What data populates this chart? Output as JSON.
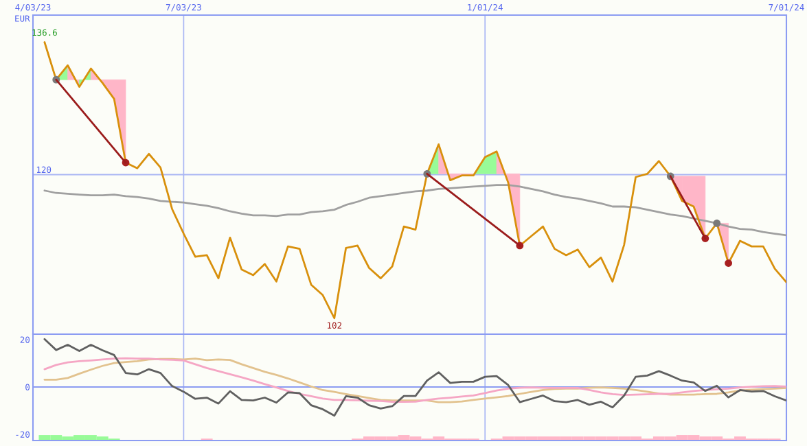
{
  "chart_data": [
    {
      "type": "line",
      "ylabel": "EUR",
      "grid": "x",
      "x": [
        "2023-04-10",
        "2023-04-17",
        "2023-04-24",
        "2023-05-01",
        "2023-05-08",
        "2023-05-15",
        "2023-05-22",
        "2023-05-29",
        "2023-06-05",
        "2023-06-12",
        "2023-06-19",
        "2023-06-26",
        "2023-07-03",
        "2023-07-10",
        "2023-07-17",
        "2023-07-24",
        "2023-07-31",
        "2023-08-07",
        "2023-08-14",
        "2023-08-21",
        "2023-08-28",
        "2023-09-04",
        "2023-09-11",
        "2023-09-18",
        "2023-09-25",
        "2023-10-02",
        "2023-10-09",
        "2023-10-16",
        "2023-10-23",
        "2023-10-30",
        "2023-11-06",
        "2023-11-13",
        "2023-11-20",
        "2023-11-27",
        "2023-12-04",
        "2023-12-11",
        "2023-12-18",
        "2023-12-25",
        "2024-01-01",
        "2024-01-08",
        "2024-01-15",
        "2024-01-22",
        "2024-01-29",
        "2024-02-05",
        "2024-02-12",
        "2024-02-19",
        "2024-02-26",
        "2024-03-04",
        "2024-03-11",
        "2024-03-18",
        "2024-03-25",
        "2024-04-01",
        "2024-04-08",
        "2024-04-15",
        "2024-04-22",
        "2024-04-29",
        "2024-05-06",
        "2024-05-13",
        "2024-05-20",
        "2024-05-27",
        "2024-06-03",
        "2024-06-10",
        "2024-06-17",
        "2024-06-24",
        "2024-07-01"
      ],
      "xlim": [
        "2023-04-03",
        "2024-07-01"
      ],
      "xticks": [
        {
          "value": "2023-04-03",
          "label": "4/03/23"
        },
        {
          "value": "2023-07-03",
          "label": "7/03/23"
        },
        {
          "value": "2024-01-01",
          "label": "1/01/24"
        },
        {
          "value": "2024-07-01",
          "label": "7/01/24"
        }
      ],
      "ylim": [
        100,
        140
      ],
      "ref_lines": [
        {
          "axis": "y",
          "value": 120,
          "label": "120",
          "color": "#a9b6f4"
        }
      ],
      "series": [
        {
          "type": "area",
          "color": "#98fb98",
          "x": [
            "2023-04-17",
            "2023-04-24",
            "2023-04-24"
          ],
          "values": [
            131.9,
            133.7,
            131.9
          ]
        },
        {
          "type": "area",
          "color": "#ffb6c8",
          "x": [
            "2023-04-24",
            "2023-05-01",
            "2023-05-01",
            "2023-04-24"
          ],
          "values": [
            133.7,
            131.0,
            131.9,
            131.9
          ]
        },
        {
          "type": "area",
          "color": "#98fb98",
          "x": [
            "2023-05-01",
            "2023-05-08",
            "2023-05-08",
            "2023-05-01"
          ],
          "values": [
            131.0,
            133.3,
            131.9,
            131.9
          ]
        },
        {
          "type": "area",
          "color": "#ffb6c8",
          "x": [
            "2023-05-08",
            "2023-05-15",
            "2023-05-22",
            "2023-05-29",
            "2023-05-29",
            "2023-05-08"
          ],
          "values": [
            133.3,
            131.5,
            129.5,
            121.5,
            131.9,
            131.9
          ]
        },
        {
          "type": "area",
          "color": "#98fb98",
          "x": [
            "2023-11-27",
            "2023-12-04",
            "2023-12-04"
          ],
          "values": [
            120.1,
            123.8,
            120.1
          ]
        },
        {
          "type": "area",
          "color": "#ffb6c8",
          "x": [
            "2023-12-04",
            "2023-12-11",
            "2023-12-18",
            "2023-12-25",
            "2023-12-25",
            "2023-12-04"
          ],
          "values": [
            123.8,
            119.3,
            119.9,
            119.9,
            120.1,
            120.1
          ]
        },
        {
          "type": "area",
          "color": "#98fb98",
          "x": [
            "2023-12-25",
            "2024-01-01",
            "2024-01-08",
            "2024-01-08",
            "2023-12-25"
          ],
          "values": [
            119.9,
            122.2,
            122.9,
            120.1,
            120.1
          ]
        },
        {
          "type": "area",
          "color": "#ffb6c8",
          "x": [
            "2024-01-08",
            "2024-01-15",
            "2024-01-22",
            "2024-01-22",
            "2024-01-08"
          ],
          "values": [
            122.9,
            119.0,
            111.1,
            120.1,
            120.1
          ]
        },
        {
          "type": "area",
          "color": "#ffb6c8",
          "x": [
            "2024-04-22",
            "2024-04-29",
            "2024-04-29"
          ],
          "values": [
            119.8,
            116.7,
            119.8
          ]
        },
        {
          "type": "area",
          "color": "#ffb6c8",
          "x": [
            "2024-04-29",
            "2024-05-06",
            "2024-05-13",
            "2024-05-13",
            "2024-04-29"
          ],
          "values": [
            116.7,
            116.0,
            112.0,
            119.8,
            119.8
          ]
        },
        {
          "type": "area",
          "color": "#ffb6c8",
          "x": [
            "2024-05-20",
            "2024-05-27",
            "2024-05-27"
          ],
          "values": [
            113.9,
            108.9,
            113.9
          ]
        },
        {
          "color": "#a0a0a0",
          "values": [
            118.0,
            117.7,
            117.6,
            117.5,
            117.4,
            117.4,
            117.5,
            117.3,
            117.2,
            117.0,
            116.7,
            116.6,
            116.5,
            116.3,
            116.1,
            115.8,
            115.4,
            115.1,
            114.9,
            114.9,
            114.8,
            115.0,
            115.0,
            115.3,
            115.4,
            115.6,
            116.2,
            116.6,
            117.1,
            117.3,
            117.5,
            117.7,
            117.9,
            118.0,
            118.2,
            118.3,
            118.4,
            118.5,
            118.6,
            118.7,
            118.7,
            118.5,
            118.2,
            117.9,
            117.5,
            117.2,
            117.0,
            116.7,
            116.4,
            116.0,
            116.0,
            115.9,
            115.6,
            115.3,
            115.0,
            114.8,
            114.5,
            114.2,
            113.9,
            113.5,
            113.2,
            113.1,
            112.8,
            112.6,
            112.4
          ]
        },
        {
          "color": "#d8900c",
          "values": [
            136.6,
            131.9,
            133.7,
            131.0,
            133.3,
            131.5,
            129.5,
            121.5,
            120.8,
            122.6,
            120.9,
            115.7,
            112.6,
            109.7,
            109.9,
            107.0,
            112.1,
            108.1,
            107.4,
            108.8,
            106.6,
            111.0,
            110.7,
            106.2,
            104.9,
            102.0,
            110.8,
            111.1,
            108.3,
            107.0,
            108.5,
            113.5,
            113.1,
            120.1,
            123.8,
            119.3,
            119.9,
            119.9,
            122.2,
            122.9,
            119.0,
            111.1,
            112.3,
            113.5,
            110.7,
            109.9,
            110.6,
            108.4,
            109.6,
            106.6,
            111.2,
            119.7,
            120.1,
            121.7,
            119.8,
            116.7,
            116.0,
            112.0,
            113.9,
            108.9,
            111.7,
            111.0,
            111.0,
            108.2,
            106.5
          ],
          "value_labels": [
            "136.6",
            null,
            null,
            null,
            null,
            null,
            null,
            null,
            null,
            null,
            null,
            null,
            null,
            null,
            null,
            null,
            null,
            null,
            null,
            null,
            null,
            null,
            null,
            null,
            null,
            "102",
            null,
            null,
            null,
            null,
            null,
            null,
            null,
            null,
            null,
            null,
            null,
            null,
            null,
            null,
            null,
            null,
            null,
            null,
            null,
            null,
            null,
            null,
            null,
            null,
            null,
            null,
            null,
            null,
            null,
            null,
            null,
            null,
            null,
            null,
            null,
            null,
            null,
            null,
            null
          ]
        },
        {
          "type": "scatter",
          "marker": "circle",
          "color": "#7a7a7a",
          "x": [
            "2023-04-17",
            "2023-11-27",
            "2024-04-22",
            "2024-05-20"
          ],
          "values": [
            131.9,
            120.1,
            119.8,
            113.9
          ]
        },
        {
          "type": "scatter",
          "marker": "circle",
          "color": "#a82020",
          "x": [
            "2023-05-29",
            "2024-01-22",
            "2024-05-13",
            "2024-05-27"
          ],
          "values": [
            121.5,
            111.1,
            112.0,
            108.9
          ]
        },
        {
          "color": "#9b1c1c",
          "x": [
            "2023-04-17",
            "2023-05-29"
          ],
          "values": [
            131.9,
            121.5
          ]
        },
        {
          "color": "#9b1c1c",
          "x": [
            "2023-11-27",
            "2024-01-22"
          ],
          "values": [
            120.1,
            111.1
          ]
        },
        {
          "color": "#9b1c1c",
          "x": [
            "2024-04-22",
            "2024-05-13"
          ],
          "values": [
            119.8,
            112.0
          ]
        }
      ]
    },
    {
      "type": "line",
      "grid": "x",
      "tick_labels": "y",
      "x": [
        "2023-04-10",
        "2023-04-17",
        "2023-04-24",
        "2023-05-01",
        "2023-05-08",
        "2023-05-15",
        "2023-05-22",
        "2023-05-29",
        "2023-06-05",
        "2023-06-12",
        "2023-06-19",
        "2023-06-26",
        "2023-07-03",
        "2023-07-10",
        "2023-07-17",
        "2023-07-24",
        "2023-07-31",
        "2023-08-07",
        "2023-08-14",
        "2023-08-21",
        "2023-08-28",
        "2023-09-04",
        "2023-09-11",
        "2023-09-18",
        "2023-09-25",
        "2023-10-02",
        "2023-10-09",
        "2023-10-16",
        "2023-10-23",
        "2023-10-30",
        "2023-11-06",
        "2023-11-13",
        "2023-11-20",
        "2023-11-27",
        "2023-12-04",
        "2023-12-11",
        "2023-12-18",
        "2023-12-25",
        "2024-01-01",
        "2024-01-08",
        "2024-01-15",
        "2024-01-22",
        "2024-01-29",
        "2024-02-05",
        "2024-02-12",
        "2024-02-19",
        "2024-02-26",
        "2024-03-04",
        "2024-03-11",
        "2024-03-18",
        "2024-03-25",
        "2024-04-01",
        "2024-04-08",
        "2024-04-15",
        "2024-04-22",
        "2024-04-29",
        "2024-05-06",
        "2024-05-13",
        "2024-05-20",
        "2024-05-27",
        "2024-06-03",
        "2024-06-10",
        "2024-06-17",
        "2024-06-24",
        "2024-07-01"
      ],
      "xlim": [
        "2023-04-03",
        "2024-07-01"
      ],
      "xticks": [
        {
          "value": "2023-04-03",
          "label": null
        },
        {
          "value": "2023-07-03",
          "label": null
        },
        {
          "value": "2024-01-01",
          "label": null
        },
        {
          "value": "2024-07-01",
          "label": null
        }
      ],
      "ylim": [
        -22.6,
        22.3
      ],
      "yticks": [
        20,
        0,
        -20
      ],
      "ref_lines": [
        {
          "axis": "y",
          "value": 0,
          "color": "#8c9cf2"
        }
      ],
      "series": [
        {
          "type": "bar",
          "values": [
            2.3,
            2.3,
            1.7,
            2.3,
            2.3,
            1.7,
            0.8,
            null,
            null,
            null,
            null,
            null,
            null,
            null,
            0.8,
            null,
            null,
            null,
            null,
            null,
            null,
            null,
            null,
            null,
            null,
            null,
            null,
            0.8,
            1.7,
            1.7,
            1.7,
            2.3,
            1.7,
            0.8,
            1.7,
            0.8,
            0.8,
            0.8,
            null,
            0.8,
            1.7,
            1.7,
            1.7,
            1.7,
            1.7,
            1.7,
            1.7,
            1.7,
            1.7,
            1.7,
            1.7,
            1.7,
            0.8,
            1.7,
            1.7,
            2.3,
            2.3,
            1.7,
            1.7,
            0.8,
            1.7,
            0.8,
            0.8,
            0.8,
            null
          ],
          "base": [
            -22.6,
            -22.6,
            -22.6,
            -22.6,
            -22.6,
            -22.6,
            -22.6,
            null,
            null,
            null,
            null,
            null,
            null,
            null,
            -22.6,
            null,
            null,
            null,
            null,
            null,
            null,
            null,
            null,
            null,
            null,
            null,
            null,
            -22.6,
            -22.6,
            -22.6,
            -22.6,
            -22.6,
            -22.6,
            -22.6,
            -22.6,
            -22.6,
            -22.6,
            -22.6,
            null,
            -22.6,
            -22.6,
            -22.6,
            -22.6,
            -22.6,
            -22.6,
            -22.6,
            -22.6,
            -22.6,
            -22.6,
            -22.6,
            -22.6,
            -22.6,
            -22.6,
            -22.6,
            -22.6,
            -22.6,
            -22.6,
            -22.6,
            -22.6,
            -22.6,
            -22.6,
            -22.6,
            -22.6,
            -22.6,
            null
          ],
          "colors": [
            "#98fb98",
            "#98fb98",
            "#98fb98",
            "#98fb98",
            "#98fb98",
            "#98fb98",
            "#98fb98",
            null,
            null,
            null,
            null,
            null,
            null,
            null,
            "#ffb6c8",
            null,
            null,
            null,
            null,
            null,
            null,
            null,
            null,
            null,
            null,
            null,
            null,
            "#ffb6c8",
            "#ffb6c8",
            "#ffb6c8",
            "#ffb6c8",
            "#ffb6c8",
            "#ffb6c8",
            "#ffb6c8",
            "#ffb6c8",
            "#ffb6c8",
            "#ffb6c8",
            "#ffb6c8",
            null,
            "#ffb6c8",
            "#ffb6c8",
            "#ffb6c8",
            "#ffb6c8",
            "#ffb6c8",
            "#ffb6c8",
            "#ffb6c8",
            "#ffb6c8",
            "#ffb6c8",
            "#ffb6c8",
            "#ffb6c8",
            "#ffb6c8",
            "#ffb6c8",
            "#ffb6c8",
            "#ffb6c8",
            "#ffb6c8",
            "#ffb6c8",
            "#ffb6c8",
            "#ffb6c8",
            "#ffb6c8",
            "#ffb6c8",
            "#ffb6c8",
            "#ffb6c8",
            "#ffb6c8",
            "#ffb6c8",
            null
          ]
        },
        {
          "color": "#e2c28e",
          "values": [
            3.1,
            3.1,
            3.8,
            5.6,
            7.3,
            8.9,
            10.1,
            10.5,
            10.9,
            11.6,
            11.8,
            11.8,
            11.6,
            12.0,
            11.3,
            11.6,
            11.4,
            9.6,
            8.0,
            6.4,
            5.1,
            3.6,
            1.9,
            0.2,
            -1.3,
            -2.1,
            -3.0,
            -3.8,
            -4.7,
            -5.5,
            -5.7,
            -5.7,
            -5.7,
            -5.7,
            -6.4,
            -6.4,
            -6.1,
            -5.5,
            -4.9,
            -4.4,
            -3.8,
            -2.9,
            -2.1,
            -1.3,
            -0.8,
            -0.7,
            -0.7,
            -0.3,
            -0.2,
            -0.4,
            -0.7,
            -1.3,
            -2.0,
            -2.8,
            -3.2,
            -3.2,
            -3.2,
            -3.0,
            -2.9,
            -2.3,
            -1.5,
            -1.1,
            -0.9,
            -0.7,
            -0.4
          ]
        },
        {
          "color": "#f5a6c4",
          "values": [
            7.5,
            9.3,
            10.4,
            10.9,
            11.2,
            11.6,
            12.0,
            12.1,
            12.0,
            12.0,
            11.6,
            11.5,
            11.2,
            9.6,
            8.0,
            6.7,
            5.4,
            4.1,
            2.7,
            1.2,
            -0.2,
            -1.7,
            -2.9,
            -3.9,
            -4.9,
            -5.5,
            -5.5,
            -5.6,
            -5.8,
            -5.9,
            -6.3,
            -6.3,
            -6.2,
            -5.5,
            -4.9,
            -4.5,
            -4.0,
            -3.6,
            -2.6,
            -1.5,
            -0.7,
            -0.3,
            -0.2,
            -0.3,
            -0.4,
            -0.4,
            -0.4,
            -1.3,
            -2.3,
            -3.0,
            -3.4,
            -3.2,
            -3.1,
            -2.9,
            -2.9,
            -2.3,
            -1.7,
            -1.3,
            -1.0,
            -0.7,
            -0.2,
            0.1,
            0.3,
            0.4,
            0.2
          ]
        },
        {
          "color": "#606060",
          "values": [
            20.2,
            15.6,
            17.8,
            15.2,
            17.8,
            15.5,
            13.5,
            5.9,
            5.3,
            7.5,
            5.9,
            0.4,
            -2.0,
            -5.0,
            -4.5,
            -7.0,
            -1.8,
            -5.5,
            -5.7,
            -4.5,
            -6.6,
            -2.3,
            -2.6,
            -7.7,
            -9.4,
            -12.1,
            -3.9,
            -4.5,
            -7.7,
            -9.1,
            -8.1,
            -3.8,
            -3.8,
            2.7,
            6.2,
            1.7,
            2.2,
            2.2,
            4.3,
            4.6,
            0.8,
            -6.4,
            -5.0,
            -3.6,
            -6.0,
            -6.4,
            -5.5,
            -7.5,
            -6.2,
            -8.6,
            -3.6,
            4.3,
            4.8,
            6.7,
            4.8,
            2.7,
            1.9,
            -1.7,
            0.5,
            -4.4,
            -1.3,
            -1.9,
            -1.7,
            -3.9,
            -5.7
          ]
        }
      ]
    }
  ]
}
